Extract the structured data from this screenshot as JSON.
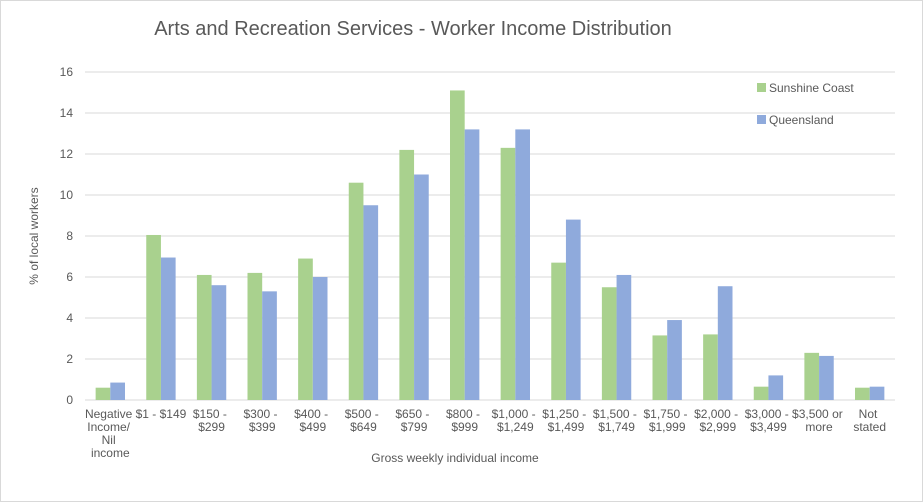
{
  "chart_data": {
    "type": "bar",
    "title": "Arts and Recreation Services - Worker Income Distribution",
    "x_label": "Gross weekly individual income",
    "y_label": "% of local workers",
    "categories": [
      "Negative Income/ Nil income",
      "$1 - $149",
      "$150 - $299",
      "$300 - $399",
      "$400 - $499",
      "$500 - $649",
      "$650 - $799",
      "$800 - $999",
      "$1,000 - $1,249",
      "$1,250 - $1,499",
      "$1,500 - $1,749",
      "$1,750 - $1,999",
      "$2,000 - $2,999",
      "$3,000 - $3,499",
      "$3,500 or more",
      "Not stated"
    ],
    "series": [
      {
        "name": "Sunshine Coast",
        "color": "#a9d18e",
        "values": [
          0.6,
          8.05,
          6.1,
          6.2,
          6.9,
          10.6,
          12.2,
          15.1,
          12.3,
          6.7,
          5.5,
          3.15,
          3.2,
          0.65,
          2.3,
          0.6
        ]
      },
      {
        "name": "Queensland",
        "color": "#8faadc",
        "values": [
          0.85,
          6.95,
          5.6,
          5.3,
          6.0,
          9.5,
          11.0,
          13.2,
          13.2,
          8.8,
          6.1,
          3.9,
          5.55,
          1.2,
          2.15,
          0.65
        ]
      }
    ],
    "ylim": [
      0,
      16
    ],
    "yticks": [
      0,
      2,
      4,
      6,
      8,
      10,
      12,
      14,
      16
    ],
    "grid": true,
    "legend": "top-right"
  }
}
